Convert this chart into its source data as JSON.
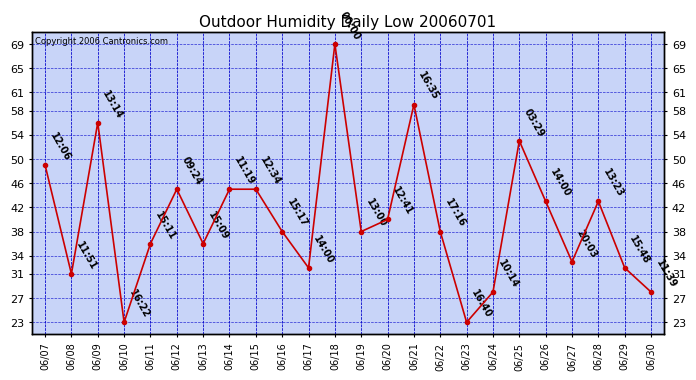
{
  "title": "Outdoor Humidity Daily Low 20060701",
  "copyright": "Copyright 2006 Cantronics.com",
  "x_labels": [
    "06/07",
    "06/08",
    "06/09",
    "06/10",
    "06/11",
    "06/12",
    "06/13",
    "06/14",
    "06/15",
    "06/16",
    "06/17",
    "06/18",
    "06/19",
    "06/20",
    "06/21",
    "06/22",
    "06/23",
    "06/24",
    "06/25",
    "06/26",
    "06/27",
    "06/28",
    "06/29",
    "06/30"
  ],
  "y_values": [
    49,
    31,
    56,
    23,
    36,
    45,
    36,
    45,
    45,
    38,
    32,
    69,
    38,
    40,
    59,
    38,
    23,
    28,
    53,
    43,
    33,
    43,
    32,
    28
  ],
  "time_labels": [
    "12:06",
    "11:51",
    "13:14",
    "16:22",
    "15:11",
    "09:24",
    "15:09",
    "11:19",
    "12:34",
    "15:17",
    "14:00",
    "00:00",
    "13:00",
    "12:41",
    "16:35",
    "17:16",
    "16:40",
    "10:14",
    "03:29",
    "14:00",
    "20:03",
    "13:23",
    "15:48",
    "11:39"
  ],
  "y_ticks": [
    23,
    27,
    31,
    34,
    38,
    42,
    46,
    50,
    54,
    58,
    61,
    65,
    69
  ],
  "line_color": "#cc0000",
  "marker_color": "#cc0000",
  "grid_color": "#0000cc",
  "plot_bg_color": "#c8d4f8",
  "annotation_fontsize": 7,
  "title_fontsize": 11
}
